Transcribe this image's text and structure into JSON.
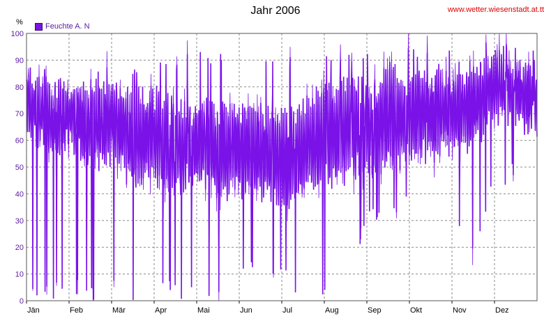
{
  "chart_data": {
    "type": "line",
    "title": "Jahr 2006",
    "credit": "www.wetter.wiesenstadt.at.tt",
    "unit_label": "%",
    "ylim": [
      0,
      100
    ],
    "y_ticks": [
      0,
      10,
      20,
      30,
      40,
      50,
      60,
      70,
      80,
      90,
      100
    ],
    "x_ticks": [
      "Jän",
      "Feb",
      "Mär",
      "Apr",
      "Mai",
      "Jun",
      "Jul",
      "Aug",
      "Sep",
      "Okt",
      "Nov",
      "Dez"
    ],
    "grid": true,
    "legend_position": "top-left",
    "series": [
      {
        "name": "Feuchte A. N",
        "color": "#7b13e8",
        "x_unit": "month",
        "x": [
          0.0,
          0.5,
          1.0,
          1.5,
          2.0,
          2.5,
          3.0,
          3.5,
          4.0,
          4.5,
          5.0,
          5.5,
          6.0,
          6.5,
          7.0,
          7.5,
          8.0,
          8.5,
          9.0,
          9.5,
          10.0,
          10.5,
          11.0,
          11.5,
          12.0
        ],
        "upper": [
          90,
          88,
          92,
          85,
          92,
          88,
          93,
          90,
          94,
          92,
          95,
          93,
          92,
          90,
          94,
          92,
          95,
          93,
          96,
          94,
          96,
          97,
          98,
          97,
          96
        ],
        "lower": [
          0,
          0,
          0,
          0,
          0,
          0,
          0,
          0,
          0,
          0,
          5,
          8,
          5,
          0,
          0,
          0,
          28,
          30,
          32,
          30,
          28,
          12,
          40,
          45,
          50
        ],
        "typical_high": [
          85,
          80,
          82,
          78,
          80,
          75,
          78,
          72,
          75,
          70,
          72,
          70,
          68,
          72,
          78,
          80,
          82,
          84,
          85,
          84,
          85,
          86,
          90,
          88,
          85
        ],
        "typical_low": [
          65,
          55,
          60,
          50,
          55,
          45,
          48,
          42,
          45,
          40,
          42,
          40,
          38,
          40,
          45,
          48,
          50,
          52,
          55,
          56,
          58,
          60,
          70,
          68,
          65
        ]
      }
    ]
  }
}
